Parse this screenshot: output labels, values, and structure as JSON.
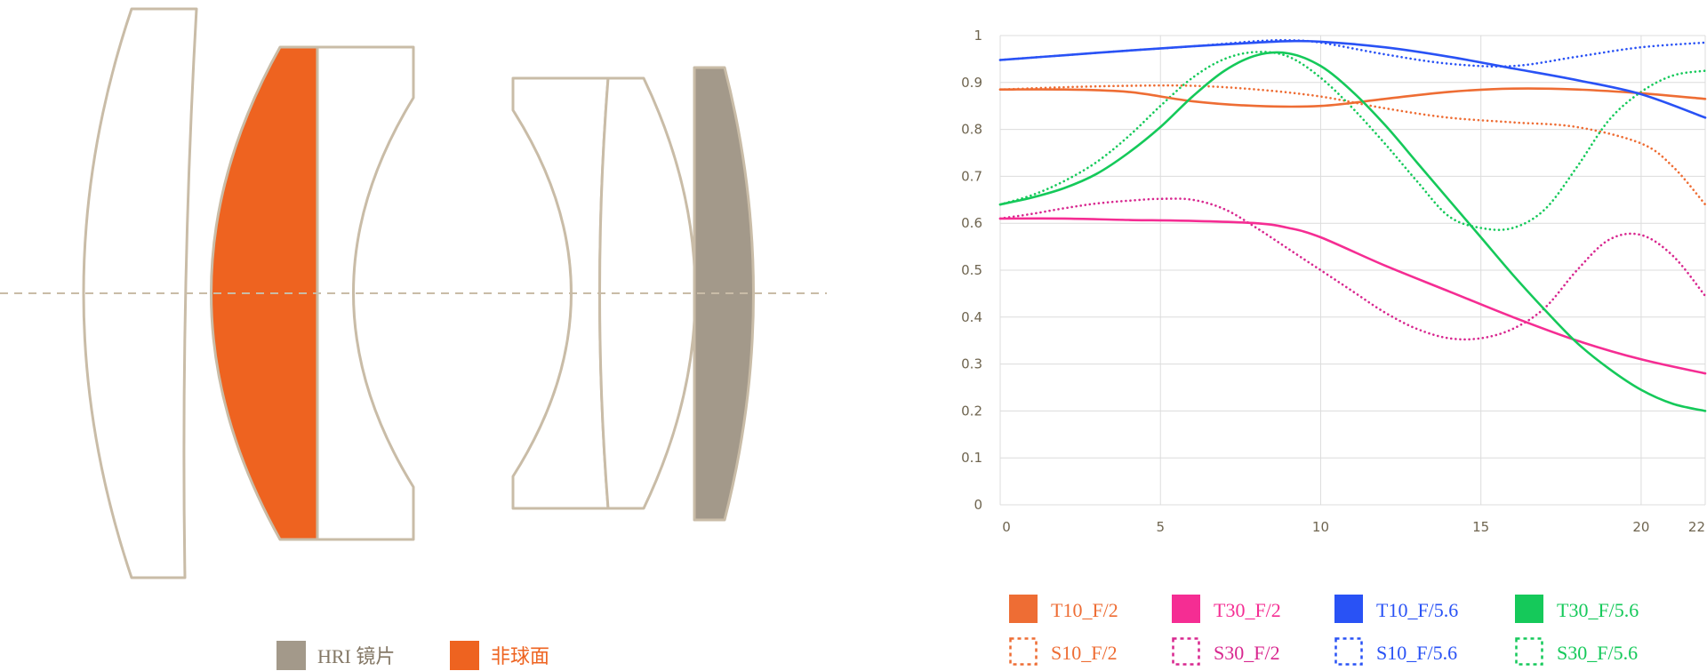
{
  "diagram": {
    "legend": [
      {
        "label": "HRI 镜片",
        "color": "#a3998a",
        "icon": "filled-swatch"
      },
      {
        "label": "非球面",
        "color": "#ee6320",
        "icon": "filled-swatch"
      }
    ],
    "colors": {
      "outline": "#c9bca7",
      "hri": "#a3998a",
      "aspheric": "#ee6320",
      "axis": "#c9bca7"
    }
  },
  "chart_data": {
    "type": "line",
    "title": "",
    "xlabel": "",
    "ylabel": "",
    "xlim": [
      0,
      22
    ],
    "ylim": [
      0,
      1
    ],
    "x_ticks": [
      "0",
      "5",
      "10",
      "15",
      "20",
      "22"
    ],
    "y_ticks": [
      "0",
      "0.1",
      "0.2",
      "0.3",
      "0.4",
      "0.5",
      "0.6",
      "0.7",
      "0.8",
      "0.9",
      "1"
    ],
    "grid": true,
    "legend_position": "bottom",
    "series": [
      {
        "name": "T10_F/2",
        "color": "#ee6d34",
        "style": "solid",
        "x": [
          0,
          2,
          4,
          6,
          8,
          10,
          12,
          14,
          16,
          18,
          20,
          22
        ],
        "y": [
          0.885,
          0.885,
          0.88,
          0.86,
          0.85,
          0.85,
          0.865,
          0.88,
          0.887,
          0.885,
          0.877,
          0.865
        ]
      },
      {
        "name": "T30_F/2",
        "color": "#f52d93",
        "style": "solid",
        "x": [
          0,
          2,
          4,
          6,
          8,
          9,
          10,
          12,
          14,
          16,
          18,
          20,
          22
        ],
        "y": [
          0.61,
          0.61,
          0.607,
          0.605,
          0.6,
          0.59,
          0.57,
          0.51,
          0.455,
          0.4,
          0.35,
          0.31,
          0.28
        ]
      },
      {
        "name": "T10_F/5.6",
        "color": "#2952f5",
        "style": "solid",
        "x": [
          0,
          2,
          4,
          6,
          8,
          9,
          10,
          12,
          14,
          16,
          18,
          20,
          22
        ],
        "y": [
          0.948,
          0.958,
          0.968,
          0.977,
          0.985,
          0.988,
          0.987,
          0.975,
          0.955,
          0.93,
          0.905,
          0.875,
          0.825
        ]
      },
      {
        "name": "T30_F/5.6",
        "color": "#15c95a",
        "style": "solid",
        "x": [
          0,
          1,
          2,
          3,
          4,
          5,
          6,
          7,
          8,
          9,
          10,
          11,
          12,
          13,
          14,
          15,
          16,
          17,
          18,
          19,
          20,
          21,
          22
        ],
        "y": [
          0.64,
          0.655,
          0.675,
          0.705,
          0.75,
          0.805,
          0.87,
          0.925,
          0.958,
          0.962,
          0.935,
          0.88,
          0.81,
          0.73,
          0.65,
          0.57,
          0.49,
          0.415,
          0.345,
          0.29,
          0.245,
          0.215,
          0.2
        ]
      },
      {
        "name": "S10_F/2",
        "color": "#ee6d34",
        "style": "dotted",
        "x": [
          0,
          2,
          4,
          6,
          8,
          10,
          12,
          14,
          16,
          18,
          20,
          21,
          22
        ],
        "y": [
          0.885,
          0.89,
          0.893,
          0.893,
          0.885,
          0.87,
          0.845,
          0.825,
          0.815,
          0.805,
          0.77,
          0.72,
          0.64
        ]
      },
      {
        "name": "S30_F/2",
        "color": "#d8278f",
        "style": "dotted",
        "x": [
          0,
          1,
          2,
          3,
          4,
          5,
          6,
          7,
          8,
          9,
          10,
          11,
          12,
          13,
          14,
          15,
          16,
          17,
          18,
          19,
          20,
          21,
          22
        ],
        "y": [
          0.61,
          0.62,
          0.632,
          0.642,
          0.648,
          0.652,
          0.65,
          0.63,
          0.59,
          0.545,
          0.5,
          0.455,
          0.41,
          0.375,
          0.355,
          0.355,
          0.375,
          0.42,
          0.5,
          0.565,
          0.575,
          0.53,
          0.445
        ]
      },
      {
        "name": "S10_F/5.6",
        "color": "#2952f5",
        "style": "dotted",
        "x": [
          0,
          2,
          4,
          6,
          8,
          9,
          10,
          12,
          14,
          16,
          18,
          20,
          22
        ],
        "y": [
          0.948,
          0.958,
          0.968,
          0.977,
          0.988,
          0.99,
          0.985,
          0.96,
          0.94,
          0.935,
          0.955,
          0.975,
          0.985
        ]
      },
      {
        "name": "S30_F/5.6",
        "color": "#15c95a",
        "style": "dotted",
        "x": [
          0,
          1,
          2,
          3,
          4,
          5,
          6,
          7,
          8,
          9,
          10,
          11,
          12,
          13,
          14,
          15,
          16,
          17,
          18,
          19,
          20,
          21,
          22
        ],
        "y": [
          0.64,
          0.66,
          0.69,
          0.73,
          0.785,
          0.85,
          0.91,
          0.95,
          0.965,
          0.955,
          0.91,
          0.845,
          0.77,
          0.69,
          0.615,
          0.59,
          0.59,
          0.63,
          0.72,
          0.82,
          0.88,
          0.915,
          0.925
        ]
      }
    ]
  }
}
